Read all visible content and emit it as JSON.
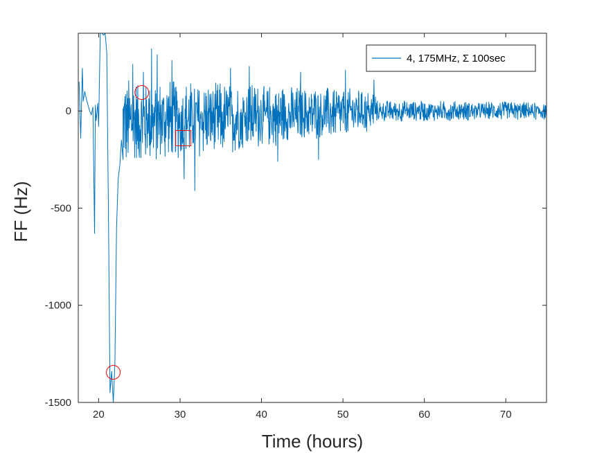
{
  "chart_data": {
    "type": "line",
    "title": "",
    "xlabel": "Time (hours)",
    "ylabel": "FF (Hz)",
    "xlim": [
      17.5,
      75
    ],
    "ylim": [
      -1500,
      400
    ],
    "x_ticks": [
      20,
      30,
      40,
      50,
      60,
      70
    ],
    "x_tick_labels": [
      "20",
      "30",
      "40",
      "50",
      "60",
      "70"
    ],
    "y_ticks": [
      0,
      -500,
      -1000,
      -1500
    ],
    "y_tick_labels": [
      "0",
      "-500",
      "-1000",
      "-1500"
    ],
    "grid": false,
    "legend": {
      "placement": "top-right"
    },
    "series": [
      {
        "name": "4, 175MHz, Σ 100sec",
        "color": "#0072bd",
        "segments": [
          {
            "x": [
              17.6,
              17.8,
              18.0,
              18.1,
              18.3,
              18.5,
              18.7,
              18.9,
              19.1,
              19.3,
              19.5,
              19.6,
              19.7,
              19.9,
              20.0,
              20.2,
              20.4,
              20.6,
              20.8,
              21.0,
              21.2,
              21.4,
              21.6,
              21.8,
              22.0,
              22.2,
              22.4,
              22.6,
              22.8,
              23.0
            ],
            "y": [
              150,
              -140,
              220,
              50,
              100,
              60,
              30,
              0,
              -20,
              20,
              -630,
              30,
              -50,
              40,
              -80,
              400,
              400,
              390,
              400,
              300,
              -500,
              -1450,
              -1340,
              -1500,
              -1300,
              -600,
              -350,
              -280,
              -150,
              -250
            ],
            "style": "sparse"
          },
          {
            "x": [
              23.0,
              54.0
            ],
            "amplitude_start": 230,
            "amplitude_end": 110,
            "bias_start": -60,
            "bias_end": 0,
            "spikes": [
              [
                26.5,
                320
              ],
              [
                27.2,
                290
              ],
              [
                25.5,
                200
              ],
              [
                24.2,
                240
              ],
              [
                31.8,
                -410
              ],
              [
                30.5,
                -350
              ],
              [
                29.0,
                260
              ],
              [
                42.0,
                -260
              ],
              [
                38.5,
                230
              ],
              [
                36.2,
                220
              ],
              [
                44.8,
                200
              ],
              [
                47.0,
                -250
              ],
              [
                50.3,
                210
              ],
              [
                53.8,
                160
              ]
            ],
            "style": "dense"
          },
          {
            "x": [
              54.0,
              75.0
            ],
            "amplitude_start": 55,
            "amplitude_end": 45,
            "bias_start": 0,
            "bias_end": 0,
            "spikes": [],
            "style": "dense"
          }
        ]
      }
    ],
    "annotations": [
      {
        "shape": "circle",
        "x": 25.3,
        "y": 95,
        "color": "#ff0000"
      },
      {
        "shape": "circle",
        "x": 21.8,
        "y": -1345,
        "color": "#ff0000"
      },
      {
        "shape": "square",
        "x": 30.4,
        "y": -140,
        "color": "#ff0000"
      }
    ]
  }
}
